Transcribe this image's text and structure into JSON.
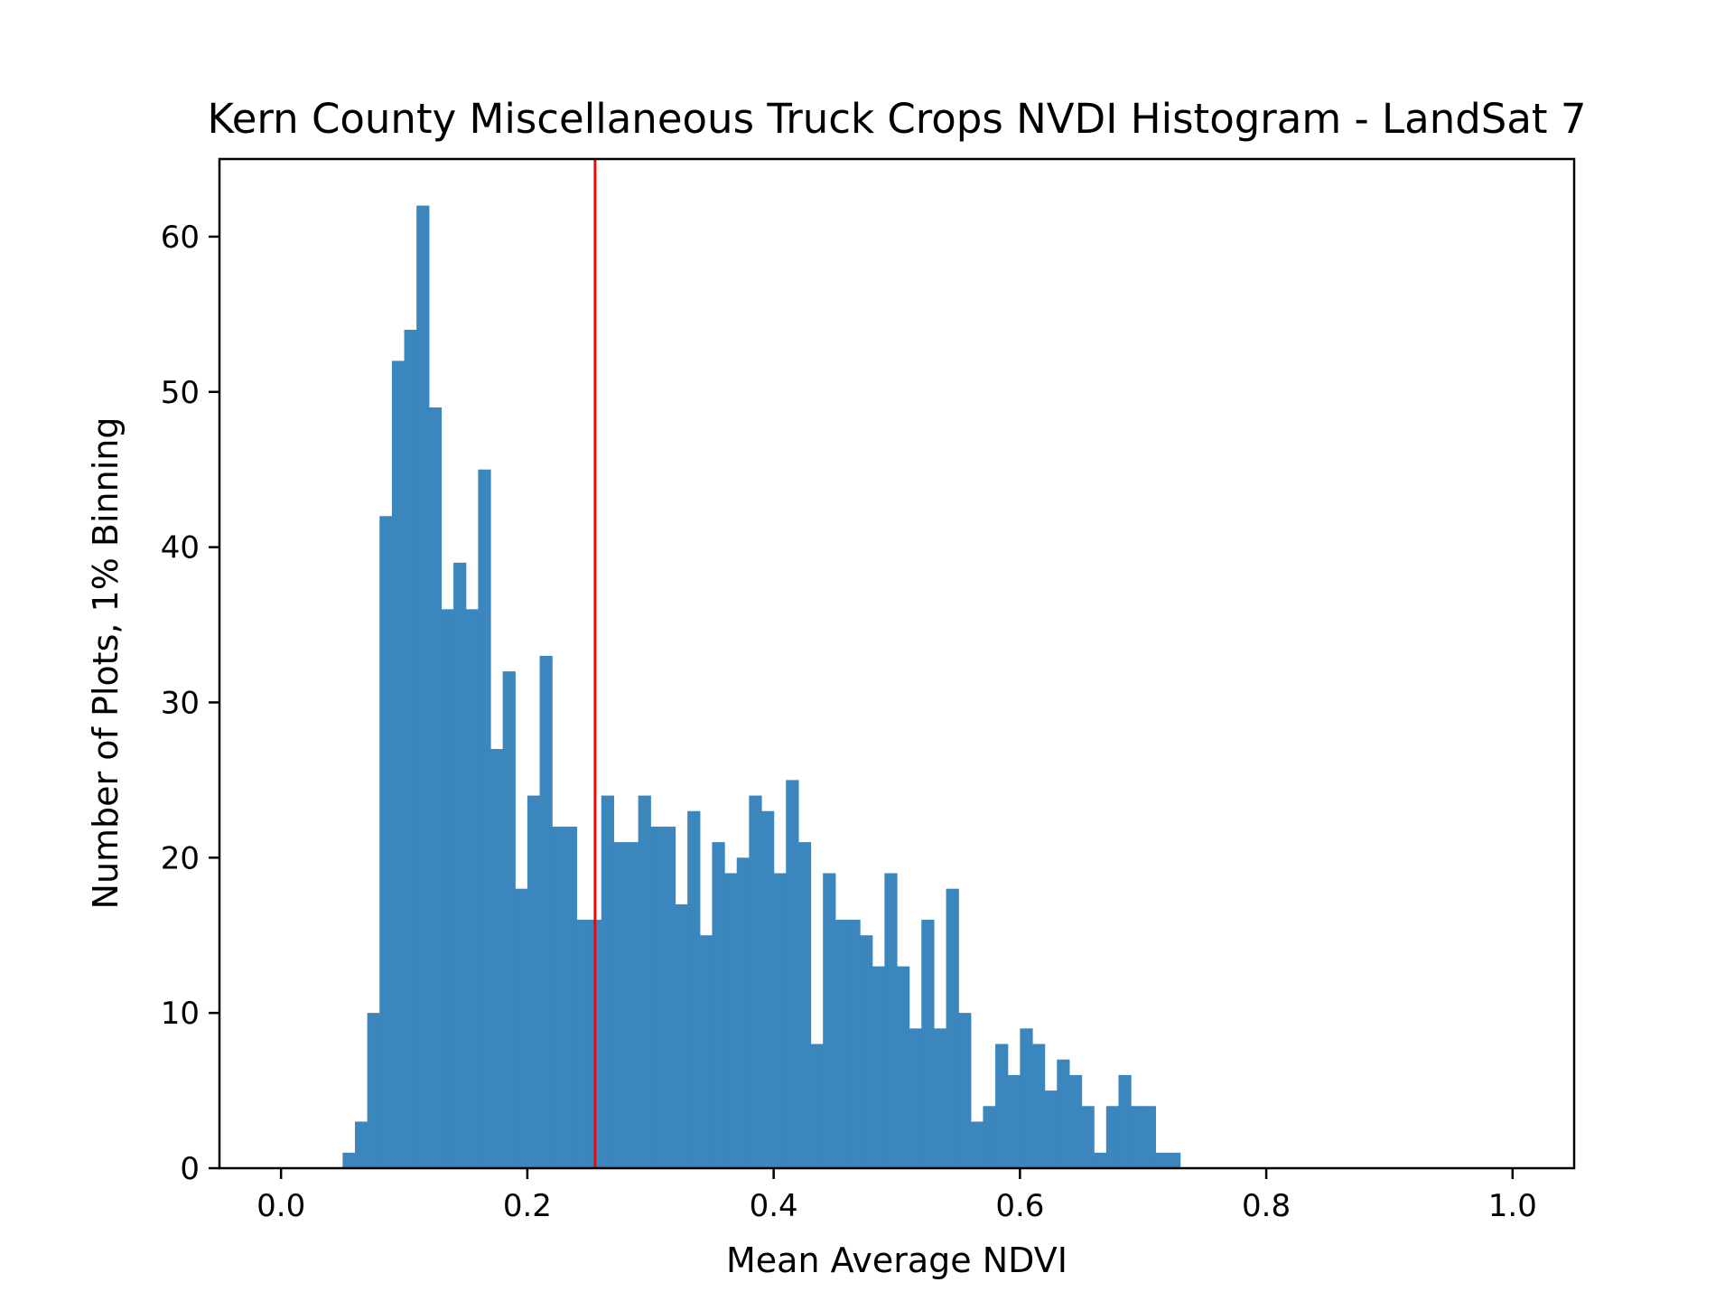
{
  "chart_data": {
    "type": "bar",
    "title": "Kern County Miscellaneous Truck Crops NVDI Histogram - LandSat 7",
    "xlabel": "Mean Average NDVI",
    "ylabel": "Number of Plots, 1% Binning",
    "xlim": [
      -0.05,
      1.05
    ],
    "ylim": [
      0,
      65
    ],
    "xticks": [
      0.0,
      0.2,
      0.4,
      0.6,
      0.8,
      1.0
    ],
    "xtick_labels": [
      "0.0",
      "0.2",
      "0.4",
      "0.6",
      "0.8",
      "1.0"
    ],
    "yticks": [
      0,
      10,
      20,
      30,
      40,
      50,
      60
    ],
    "ytick_labels": [
      "0",
      "10",
      "20",
      "30",
      "40",
      "50",
      "60"
    ],
    "bin_width": 0.01,
    "bin_start": 0.0,
    "values": [
      0,
      0,
      0,
      0,
      0,
      1,
      3,
      10,
      42,
      52,
      54,
      62,
      49,
      36,
      39,
      36,
      45,
      27,
      32,
      18,
      24,
      33,
      22,
      22,
      16,
      16,
      24,
      21,
      21,
      24,
      22,
      22,
      17,
      23,
      15,
      21,
      19,
      20,
      24,
      23,
      19,
      25,
      21,
      8,
      19,
      16,
      16,
      15,
      13,
      19,
      13,
      9,
      16,
      9,
      18,
      10,
      3,
      4,
      8,
      6,
      9,
      8,
      5,
      7,
      6,
      4,
      1,
      4,
      6,
      4,
      4,
      1,
      1,
      0,
      0,
      0,
      0,
      0,
      0,
      0,
      0,
      0,
      0,
      0,
      0,
      0,
      0,
      0,
      0,
      0,
      0,
      0,
      0,
      0,
      0,
      0,
      0,
      0,
      0,
      0
    ],
    "mean_line": {
      "x": 0.255,
      "color": "#ff0000"
    },
    "bar_color": "#3a86bd",
    "grid": false
  }
}
